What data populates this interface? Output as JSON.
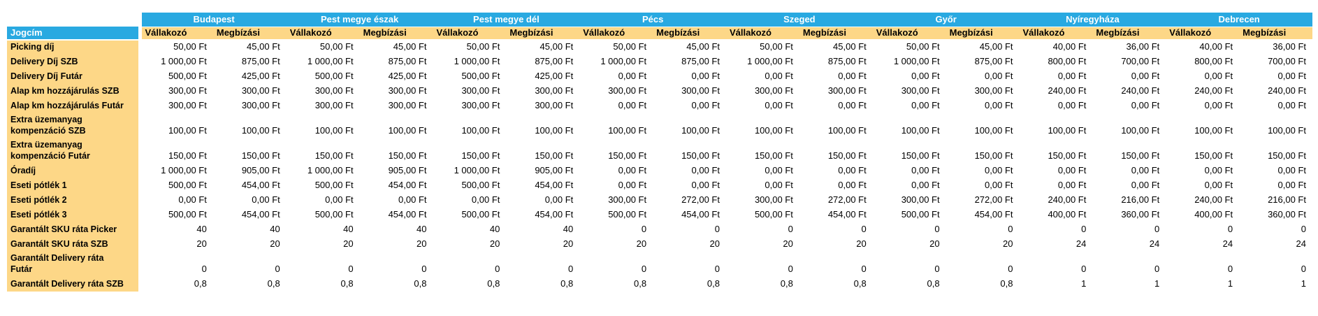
{
  "colors": {
    "header_blue": "#29A9E1",
    "band_yellow": "#FDD787",
    "header_text": "#FFFFFF",
    "label_text": "#000000",
    "value_text": "#000000"
  },
  "table": {
    "corner_label": "Jogcím",
    "city_groups": [
      "Budapest",
      "Pest megye észak",
      "Pest megye dél",
      "Pécs",
      "Szeged",
      "Győr",
      "Nyíregyháza",
      "Debrecen"
    ],
    "sub_headers": [
      "Vállakozó",
      "Megbízási"
    ],
    "rows": [
      {
        "label": "Picking díj",
        "values": [
          "50,00 Ft",
          "45,00 Ft",
          "50,00 Ft",
          "45,00 Ft",
          "50,00 Ft",
          "45,00 Ft",
          "50,00 Ft",
          "45,00 Ft",
          "50,00 Ft",
          "45,00 Ft",
          "50,00 Ft",
          "45,00 Ft",
          "40,00 Ft",
          "36,00 Ft",
          "40,00 Ft",
          "36,00 Ft"
        ]
      },
      {
        "label": "Delivery Díj SZB",
        "values": [
          "1 000,00 Ft",
          "875,00 Ft",
          "1 000,00 Ft",
          "875,00 Ft",
          "1 000,00 Ft",
          "875,00 Ft",
          "1 000,00 Ft",
          "875,00 Ft",
          "1 000,00 Ft",
          "875,00 Ft",
          "1 000,00 Ft",
          "875,00 Ft",
          "800,00 Ft",
          "700,00 Ft",
          "800,00 Ft",
          "700,00 Ft"
        ]
      },
      {
        "label": "Delivery Díj Futár",
        "values": [
          "500,00 Ft",
          "425,00 Ft",
          "500,00 Ft",
          "425,00 Ft",
          "500,00 Ft",
          "425,00 Ft",
          "0,00 Ft",
          "0,00 Ft",
          "0,00 Ft",
          "0,00 Ft",
          "0,00 Ft",
          "0,00 Ft",
          "0,00 Ft",
          "0,00 Ft",
          "0,00 Ft",
          "0,00 Ft"
        ]
      },
      {
        "label": "Alap km hozzájárulás SZB",
        "values": [
          "300,00 Ft",
          "300,00 Ft",
          "300,00 Ft",
          "300,00 Ft",
          "300,00 Ft",
          "300,00 Ft",
          "300,00 Ft",
          "300,00 Ft",
          "300,00 Ft",
          "300,00 Ft",
          "300,00 Ft",
          "300,00 Ft",
          "240,00 Ft",
          "240,00 Ft",
          "240,00 Ft",
          "240,00 Ft"
        ]
      },
      {
        "label": "Alap km hozzájárulás Futár",
        "values": [
          "300,00 Ft",
          "300,00 Ft",
          "300,00 Ft",
          "300,00 Ft",
          "300,00 Ft",
          "300,00 Ft",
          "0,00 Ft",
          "0,00 Ft",
          "0,00 Ft",
          "0,00 Ft",
          "0,00 Ft",
          "0,00 Ft",
          "0,00 Ft",
          "0,00 Ft",
          "0,00 Ft",
          "0,00 Ft"
        ]
      },
      {
        "label": "Extra üzemanyag\nkompenzáció SZB",
        "values": [
          "100,00 Ft",
          "100,00 Ft",
          "100,00 Ft",
          "100,00 Ft",
          "100,00 Ft",
          "100,00 Ft",
          "100,00 Ft",
          "100,00 Ft",
          "100,00 Ft",
          "100,00 Ft",
          "100,00 Ft",
          "100,00 Ft",
          "100,00 Ft",
          "100,00 Ft",
          "100,00 Ft",
          "100,00 Ft"
        ]
      },
      {
        "label": "Extra üzemanyag\nkompenzáció Futár",
        "values": [
          "150,00 Ft",
          "150,00 Ft",
          "150,00 Ft",
          "150,00 Ft",
          "150,00 Ft",
          "150,00 Ft",
          "150,00 Ft",
          "150,00 Ft",
          "150,00 Ft",
          "150,00 Ft",
          "150,00 Ft",
          "150,00 Ft",
          "150,00 Ft",
          "150,00 Ft",
          "150,00 Ft",
          "150,00 Ft"
        ]
      },
      {
        "label": "Óradíj",
        "values": [
          "1 000,00 Ft",
          "905,00 Ft",
          "1 000,00 Ft",
          "905,00 Ft",
          "1 000,00 Ft",
          "905,00 Ft",
          "0,00 Ft",
          "0,00 Ft",
          "0,00 Ft",
          "0,00 Ft",
          "0,00 Ft",
          "0,00 Ft",
          "0,00 Ft",
          "0,00 Ft",
          "0,00 Ft",
          "0,00 Ft"
        ]
      },
      {
        "label": "Eseti pótlék 1",
        "values": [
          "500,00 Ft",
          "454,00 Ft",
          "500,00 Ft",
          "454,00 Ft",
          "500,00 Ft",
          "454,00 Ft",
          "0,00 Ft",
          "0,00 Ft",
          "0,00 Ft",
          "0,00 Ft",
          "0,00 Ft",
          "0,00 Ft",
          "0,00 Ft",
          "0,00 Ft",
          "0,00 Ft",
          "0,00 Ft"
        ]
      },
      {
        "label": "Eseti pótlék 2",
        "values": [
          "0,00 Ft",
          "0,00 Ft",
          "0,00 Ft",
          "0,00 Ft",
          "0,00 Ft",
          "0,00 Ft",
          "300,00 Ft",
          "272,00 Ft",
          "300,00 Ft",
          "272,00 Ft",
          "300,00 Ft",
          "272,00 Ft",
          "240,00 Ft",
          "216,00 Ft",
          "240,00 Ft",
          "216,00 Ft"
        ]
      },
      {
        "label": "Eseti pótlék 3",
        "values": [
          "500,00 Ft",
          "454,00 Ft",
          "500,00 Ft",
          "454,00 Ft",
          "500,00 Ft",
          "454,00 Ft",
          "500,00 Ft",
          "454,00 Ft",
          "500,00 Ft",
          "454,00 Ft",
          "500,00 Ft",
          "454,00 Ft",
          "400,00 Ft",
          "360,00 Ft",
          "400,00 Ft",
          "360,00 Ft"
        ]
      },
      {
        "label": "Garantált SKU ráta Picker",
        "values": [
          "40",
          "40",
          "40",
          "40",
          "40",
          "40",
          "0",
          "0",
          "0",
          "0",
          "0",
          "0",
          "0",
          "0",
          "0",
          "0"
        ]
      },
      {
        "label": "Garantált SKU ráta SZB",
        "values": [
          "20",
          "20",
          "20",
          "20",
          "20",
          "20",
          "20",
          "20",
          "20",
          "20",
          "20",
          "20",
          "24",
          "24",
          "24",
          "24"
        ]
      },
      {
        "label": "Garantált Delivery ráta\nFutár",
        "values": [
          "0",
          "0",
          "0",
          "0",
          "0",
          "0",
          "0",
          "0",
          "0",
          "0",
          "0",
          "0",
          "0",
          "0",
          "0",
          "0"
        ]
      },
      {
        "label": "Garantált Delivery ráta SZB",
        "values": [
          "0,8",
          "0,8",
          "0,8",
          "0,8",
          "0,8",
          "0,8",
          "0,8",
          "0,8",
          "0,8",
          "0,8",
          "0,8",
          "0,8",
          "1",
          "1",
          "1",
          "1"
        ]
      }
    ]
  }
}
